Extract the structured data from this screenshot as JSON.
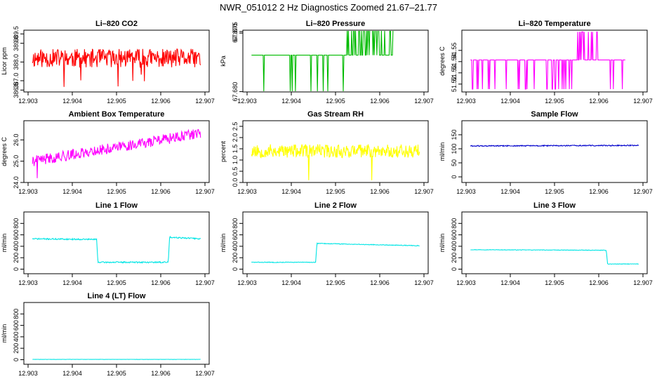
{
  "title": "NWR_051012  2 Hz Diagnostics Zoomed 21.67–21.77",
  "colors": {
    "co2": "#ff0000",
    "pressure": "#00bb00",
    "temperature": "#ff00ff",
    "ambient": "#ff00ff",
    "rh": "#ffff00",
    "sample": "#0000cc",
    "line1": "#00e5e5",
    "line2": "#00e5e5",
    "line3": "#00e5e5",
    "line4": "#00e5e5"
  },
  "chart_data": [
    {
      "id": "co2",
      "type": "line",
      "title": "Li–820 CO2",
      "ylabel": "Licor ppm",
      "xlabel": "",
      "xlim": [
        12.903,
        12.907
      ],
      "ylim": [
        386.4,
        389.7
      ],
      "xticks": [
        "12.903",
        "12.904",
        "12.905",
        "12.906",
        "12.907"
      ],
      "yticks": [
        {
          "v": 386.5,
          "t": "386.5"
        },
        {
          "v": 387.0,
          "t": "387.0"
        },
        {
          "v": 388.0,
          "t": "388.0"
        },
        {
          "v": 389.0,
          "t": "389.0"
        },
        {
          "v": 389.5,
          "t": "389.5"
        }
      ],
      "ytick_rotate": true,
      "series": [
        {
          "name": "Li-820 CO2",
          "color_key": "co2",
          "mode": "noise",
          "seed": 11,
          "amp": 0.5,
          "spikes": 0.02,
          "points": [
            [
              12.9031,
              388.2
            ],
            [
              12.9069,
              388.2
            ]
          ]
        }
      ]
    },
    {
      "id": "pressure",
      "type": "line",
      "title": "Li–820 Pressure",
      "ylabel": "kPa",
      "xlabel": "",
      "xlim": [
        12.903,
        12.907
      ],
      "ylim": [
        67.679,
        67.8795
      ],
      "xticks": [
        "12.903",
        "12.904",
        "12.905",
        "12.906",
        "12.907"
      ],
      "yticks": [
        {
          "v": 67.68,
          "t": "67.680"
        },
        {
          "v": 67.87,
          "t": "67.870"
        },
        {
          "v": 67.875,
          "t": "67.875"
        }
      ],
      "ytick_rotate": true,
      "series": [
        {
          "name": "Li-820 Pressure",
          "color_key": "pressure",
          "mode": "switch",
          "seed": 23,
          "levels": [
            67.7985,
            67.68,
            67.8785
          ],
          "segments": [
            [
              12.9031,
              12.9052,
              0,
              1,
              0.06
            ],
            [
              12.9052,
              12.9055,
              0,
              2,
              0.25
            ],
            [
              12.9055,
              12.90575,
              0,
              2,
              0.5
            ],
            [
              12.90575,
              12.9063,
              2,
              0,
              0.45
            ],
            [
              12.9063,
              12.9069,
              2,
              2,
              0
            ]
          ]
        }
      ]
    },
    {
      "id": "temperature",
      "type": "line",
      "title": "Li–820 Temperature",
      "ylabel": "degrees C",
      "xlabel": "",
      "xlim": [
        12.903,
        12.907
      ],
      "ylim": [
        51.513,
        51.568
      ],
      "xticks": [
        "12.903",
        "12.904",
        "12.905",
        "12.906",
        "12.907"
      ],
      "yticks": [
        {
          "v": 51.52,
          "t": "51.52"
        },
        {
          "v": 51.53,
          "t": "51.53"
        },
        {
          "v": 51.54,
          "t": "51.54"
        },
        {
          "v": 51.55,
          "t": "51.55"
        }
      ],
      "ytick_rotate": true,
      "series": [
        {
          "name": "Li-820 Temperature",
          "color_key": "temperature",
          "mode": "switch",
          "seed": 37,
          "levels": [
            51.5415,
            51.5155,
            51.5665
          ],
          "segments": [
            [
              12.9031,
              12.9055,
              0,
              1,
              0.12
            ],
            [
              12.9055,
              12.9069,
              0,
              2,
              0.3
            ],
            [
              12.906,
              12.9066,
              0,
              1,
              0.05
            ]
          ]
        }
      ]
    },
    {
      "id": "ambient",
      "type": "line",
      "title": "Ambient Box Temperature",
      "ylabel": "degrees C",
      "xlabel": "",
      "xlim": [
        12.903,
        12.907
      ],
      "ylim": [
        24.0,
        26.9
      ],
      "xticks": [
        "12.903",
        "12.904",
        "12.905",
        "12.906",
        "12.907"
      ],
      "yticks": [
        {
          "v": 24.0,
          "t": "24.0"
        },
        {
          "v": 25.0,
          "t": "25.0"
        },
        {
          "v": 26.0,
          "t": "26.0"
        }
      ],
      "ytick_rotate": true,
      "series": [
        {
          "name": "Ambient Box Temperature",
          "color_key": "ambient",
          "mode": "noise",
          "seed": 41,
          "amp": 0.25,
          "spikes": 0.004,
          "spike_to": 24.2,
          "points": [
            [
              12.9031,
              25.0
            ],
            [
              12.9069,
              26.3
            ]
          ]
        }
      ]
    },
    {
      "id": "rh",
      "type": "line",
      "title": "Gas Stream RH",
      "ylabel": "percent",
      "xlabel": "",
      "xlim": [
        12.903,
        12.907
      ],
      "ylim": [
        0.0,
        2.75
      ],
      "xticks": [
        "12.903",
        "12.904",
        "12.905",
        "12.906",
        "12.907"
      ],
      "yticks": [
        {
          "v": 0.0,
          "t": "0.0"
        },
        {
          "v": 0.5,
          "t": "0.5"
        },
        {
          "v": 1.0,
          "t": "1.0"
        },
        {
          "v": 1.5,
          "t": "1.5"
        },
        {
          "v": 2.0,
          "t": "2.0"
        },
        {
          "v": 2.5,
          "t": "2.5"
        }
      ],
      "ytick_rotate": true,
      "series": [
        {
          "name": "Gas Stream RH",
          "color_key": "rh",
          "mode": "noise",
          "seed": 53,
          "amp": 0.3,
          "spikes": 0.015,
          "spike_to": 0.1,
          "points": [
            [
              12.9031,
              1.4
            ],
            [
              12.9069,
              1.4
            ]
          ]
        }
      ]
    },
    {
      "id": "sample",
      "type": "line",
      "title": "Sample Flow",
      "ylabel": "ml/min",
      "xlabel": "",
      "xlim": [
        12.903,
        12.907
      ],
      "ylim": [
        -20,
        200
      ],
      "xticks": [
        "12.903",
        "12.904",
        "12.905",
        "12.906",
        "12.907"
      ],
      "yticks": [
        {
          "v": 0,
          "t": "0"
        },
        {
          "v": 50,
          "t": "50"
        },
        {
          "v": 100,
          "t": "100"
        },
        {
          "v": 150,
          "t": "150"
        }
      ],
      "ytick_rotate": true,
      "series": [
        {
          "name": "Sample Flow",
          "color_key": "sample",
          "mode": "noise",
          "seed": 61,
          "amp": 2,
          "spikes": 0,
          "points": [
            [
              12.9031,
              110
            ],
            [
              12.9069,
              112
            ]
          ]
        }
      ]
    },
    {
      "id": "line1",
      "type": "line",
      "title": "Line 1 Flow",
      "ylabel": "ml/min",
      "xlabel": "",
      "xlim": [
        12.903,
        12.907
      ],
      "ylim": [
        -80,
        1000
      ],
      "xticks": [
        "12.903",
        "12.904",
        "12.905",
        "12.906",
        "12.907"
      ],
      "yticks": [
        {
          "v": 0,
          "t": "0"
        },
        {
          "v": 200,
          "t": "200"
        },
        {
          "v": 400,
          "t": "400"
        },
        {
          "v": 600,
          "t": "600"
        },
        {
          "v": 800,
          "t": "800"
        }
      ],
      "ytick_rotate": true,
      "series": [
        {
          "name": "Line 1 Flow",
          "color_key": "line1",
          "mode": "noise",
          "seed": 71,
          "amp": 12,
          "spikes": 0,
          "points": [
            [
              12.9031,
              530
            ],
            [
              12.90455,
              520
            ],
            [
              12.90458,
              120
            ],
            [
              12.90617,
              120
            ],
            [
              12.9062,
              560
            ],
            [
              12.9069,
              530
            ]
          ]
        }
      ]
    },
    {
      "id": "line2",
      "type": "line",
      "title": "Line 2 Flow",
      "ylabel": "ml/min",
      "xlabel": "",
      "xlim": [
        12.903,
        12.907
      ],
      "ylim": [
        -80,
        1000
      ],
      "xticks": [
        "12.903",
        "12.904",
        "12.905",
        "12.906",
        "12.907"
      ],
      "yticks": [
        {
          "v": 0,
          "t": "0"
        },
        {
          "v": 200,
          "t": "200"
        },
        {
          "v": 400,
          "t": "400"
        },
        {
          "v": 600,
          "t": "600"
        },
        {
          "v": 800,
          "t": "800"
        }
      ],
      "ytick_rotate": true,
      "series": [
        {
          "name": "Line 2 Flow",
          "color_key": "line2",
          "mode": "noise",
          "seed": 83,
          "amp": 6,
          "spikes": 0,
          "points": [
            [
              12.9031,
              120
            ],
            [
              12.90455,
              120
            ],
            [
              12.90458,
              450
            ],
            [
              12.9069,
              410
            ]
          ]
        }
      ]
    },
    {
      "id": "line3",
      "type": "line",
      "title": "Line 3 Flow",
      "ylabel": "ml/min",
      "xlabel": "",
      "xlim": [
        12.903,
        12.907
      ],
      "ylim": [
        -80,
        1000
      ],
      "xticks": [
        "12.903",
        "12.904",
        "12.905",
        "12.906",
        "12.907"
      ],
      "yticks": [
        {
          "v": 0,
          "t": "0"
        },
        {
          "v": 200,
          "t": "200"
        },
        {
          "v": 400,
          "t": "400"
        },
        {
          "v": 600,
          "t": "600"
        },
        {
          "v": 800,
          "t": "800"
        }
      ],
      "ytick_rotate": true,
      "series": [
        {
          "name": "Line 3 Flow",
          "color_key": "line3",
          "mode": "noise",
          "seed": 97,
          "amp": 4,
          "spikes": 0,
          "points": [
            [
              12.9031,
              340
            ],
            [
              12.90617,
              330
            ],
            [
              12.9062,
              90
            ],
            [
              12.9069,
              90
            ]
          ]
        }
      ]
    },
    {
      "id": "line4",
      "type": "line",
      "title": "Line 4 (LT) Flow",
      "ylabel": "ml/min",
      "xlabel": "",
      "xlim": [
        12.903,
        12.907
      ],
      "ylim": [
        -80,
        1000
      ],
      "xticks": [
        "12.903",
        "12.904",
        "12.905",
        "12.906",
        "12.907"
      ],
      "yticks": [
        {
          "v": 0,
          "t": "0"
        },
        {
          "v": 200,
          "t": "200"
        },
        {
          "v": 400,
          "t": "400"
        },
        {
          "v": 600,
          "t": "600"
        },
        {
          "v": 800,
          "t": "800"
        }
      ],
      "ytick_rotate": true,
      "series": [
        {
          "name": "Line 4 (LT) Flow",
          "color_key": "line4",
          "mode": "noise",
          "seed": 101,
          "amp": 2,
          "spikes": 0,
          "points": [
            [
              12.9031,
              5
            ],
            [
              12.9069,
              5
            ]
          ]
        }
      ]
    }
  ]
}
